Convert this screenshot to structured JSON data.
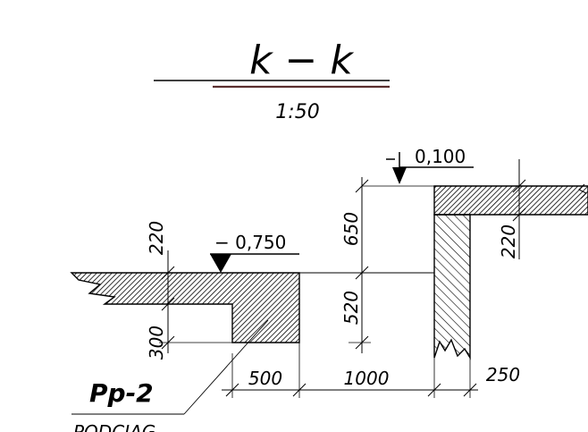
{
  "section": {
    "title": "k − k",
    "scale": "1:50"
  },
  "levels": {
    "upper": "0,100",
    "lower": "− 0,750"
  },
  "dims_vertical": {
    "d220_left": "220",
    "d300": "300",
    "d650": "650",
    "d520": "520",
    "d220_right": "220"
  },
  "dims_horizontal": {
    "d500": "500",
    "d1000": "1000",
    "d250": "250"
  },
  "label": {
    "code": "Pp-2",
    "description": "PODCIĄG"
  },
  "colors": {
    "line": "#000000",
    "title_underline": "#5a2f2f"
  }
}
